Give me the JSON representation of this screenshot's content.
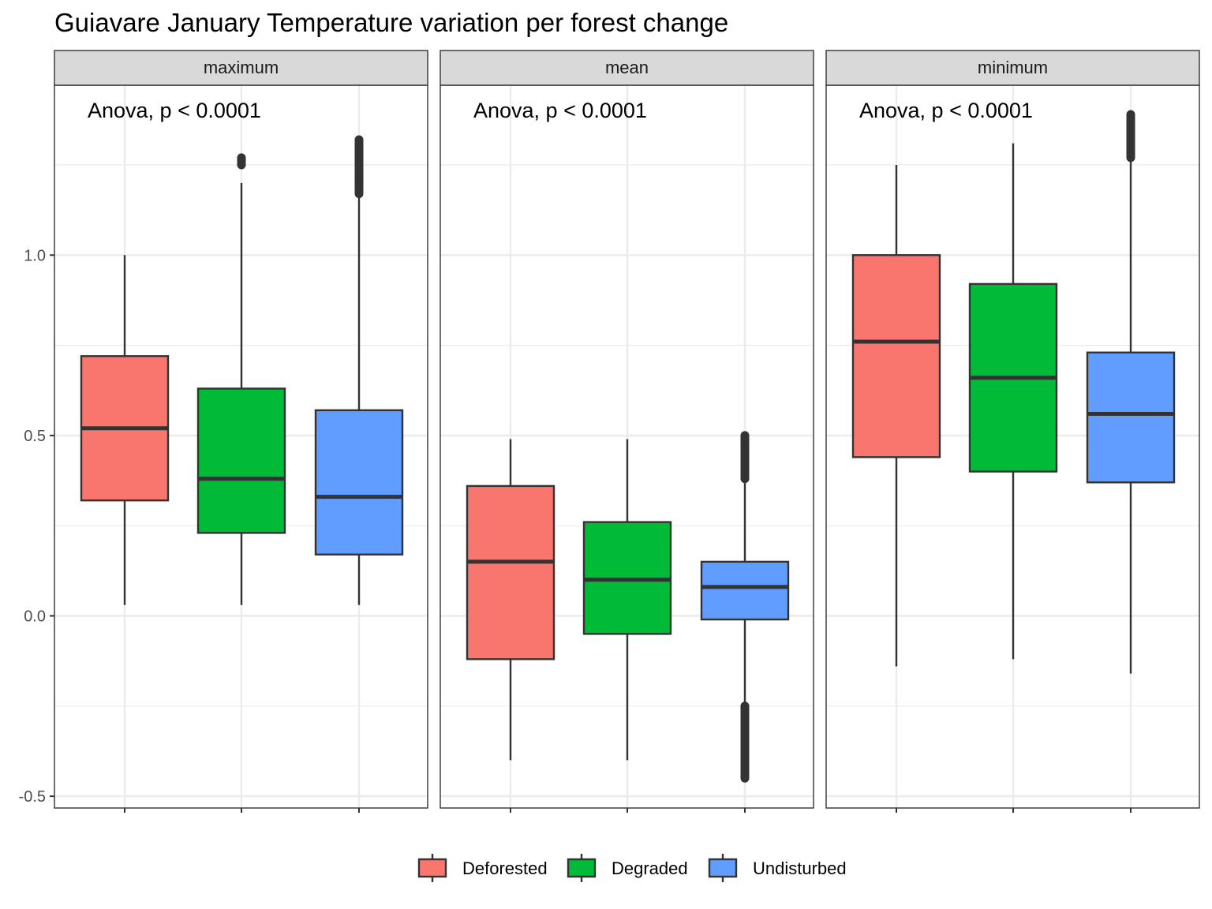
{
  "chart_data": {
    "type": "boxplot",
    "title": "Guiavare January Temperature variation per forest change",
    "xlabel": "",
    "ylabel": "",
    "ylim": [
      -0.5,
      1.5
    ],
    "y_ticks": [
      -0.5,
      0.0,
      0.5,
      1.0
    ],
    "y_tick_labels": [
      "-0.5",
      "0.0",
      "0.5",
      "1.0"
    ],
    "grid": true,
    "legend_position": "bottom",
    "series": [
      {
        "name": "Deforested",
        "color": "#F8766D"
      },
      {
        "name": "Degraded",
        "color": "#00BA38"
      },
      {
        "name": "Undisturbed",
        "color": "#619CFF"
      }
    ],
    "panels": [
      {
        "label": "maximum",
        "annotation": "Anova, p < 0.0001",
        "boxes": [
          {
            "group": "Deforested",
            "whisker_low": 0.03,
            "q1": 0.32,
            "median": 0.52,
            "q3": 0.72,
            "whisker_high": 1.0,
            "outliers_high": [],
            "outliers_low": []
          },
          {
            "group": "Degraded",
            "whisker_low": 0.03,
            "q1": 0.23,
            "median": 0.38,
            "q3": 0.63,
            "whisker_high": 1.2,
            "outliers_high": [
              1.25,
              1.27
            ],
            "outliers_low": []
          },
          {
            "group": "Undisturbed",
            "whisker_low": 0.03,
            "q1": 0.17,
            "median": 0.33,
            "q3": 0.57,
            "whisker_high": 1.17,
            "outliers_high": [
              1.17,
              1.32
            ],
            "outliers_low": []
          }
        ]
      },
      {
        "label": "mean",
        "annotation": "Anova, p < 0.0001",
        "boxes": [
          {
            "group": "Deforested",
            "whisker_low": -0.4,
            "q1": -0.12,
            "median": 0.15,
            "q3": 0.36,
            "whisker_high": 0.49,
            "outliers_high": [],
            "outliers_low": []
          },
          {
            "group": "Degraded",
            "whisker_low": -0.4,
            "q1": -0.05,
            "median": 0.1,
            "q3": 0.26,
            "whisker_high": 0.49,
            "outliers_high": [],
            "outliers_low": []
          },
          {
            "group": "Undisturbed",
            "whisker_low": -0.25,
            "q1": -0.01,
            "median": 0.08,
            "q3": 0.15,
            "whisker_high": 0.38,
            "outliers_high": [
              0.38,
              0.5
            ],
            "outliers_low": [
              -0.45,
              -0.25
            ]
          }
        ]
      },
      {
        "label": "minimum",
        "annotation": "Anova, p < 0.0001",
        "boxes": [
          {
            "group": "Deforested",
            "whisker_low": -0.14,
            "q1": 0.44,
            "median": 0.76,
            "q3": 1.0,
            "whisker_high": 1.25,
            "outliers_high": [],
            "outliers_low": []
          },
          {
            "group": "Degraded",
            "whisker_low": -0.12,
            "q1": 0.4,
            "median": 0.66,
            "q3": 0.92,
            "whisker_high": 1.31,
            "outliers_high": [],
            "outliers_low": []
          },
          {
            "group": "Undisturbed",
            "whisker_low": -0.16,
            "q1": 0.37,
            "median": 0.56,
            "q3": 0.73,
            "whisker_high": 1.27,
            "outliers_high": [
              1.27,
              1.39
            ],
            "outliers_low": []
          }
        ]
      }
    ]
  }
}
